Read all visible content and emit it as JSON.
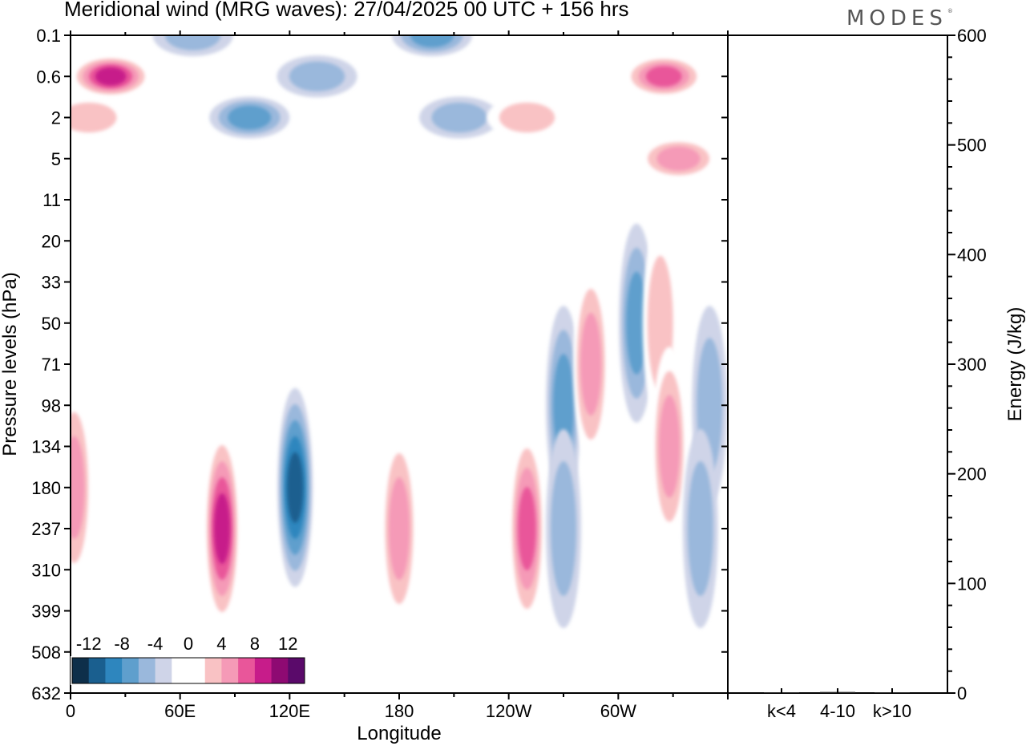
{
  "title": "Meridional wind (MRG waves):  27/04/2025  00 UTC  + 156 hrs",
  "logo": "MODES",
  "chart_data": [
    {
      "type": "heatmap",
      "title": "Meridional wind (MRG waves):  27/04/2025  00 UTC  + 156 hrs",
      "xlabel": "Longitude",
      "ylabel": "Pressure levels (hPa)",
      "x_tick_labels": [
        "0",
        "60E",
        "120E",
        "180",
        "120W",
        "60W"
      ],
      "x_tick_degrees": [
        0,
        60,
        120,
        180,
        240,
        300
      ],
      "xlim": [
        0,
        360
      ],
      "y_tick_labels": [
        "0.1",
        "0.6",
        "2",
        "5",
        "11",
        "20",
        "33",
        "50",
        "71",
        "98",
        "134",
        "180",
        "237",
        "310",
        "399",
        "508",
        "632"
      ],
      "colorbar": {
        "labels": [
          "-12",
          "-8",
          "-4",
          "0",
          "4",
          "8",
          "12"
        ],
        "levels": [
          -14,
          -12,
          -10,
          -8,
          -6,
          -4,
          -2,
          2,
          4,
          6,
          8,
          10,
          12,
          14
        ],
        "colors": [
          "#0e2f4a",
          "#1a5f8f",
          "#2e86be",
          "#5f9fcd",
          "#9ab8dc",
          "#cfd4e8",
          "#ffffff",
          "#ffffff",
          "#f9c2c4",
          "#f59ab7",
          "#e9569a",
          "#c71c8a",
          "#8e0a72",
          "#5a0a6a"
        ]
      },
      "cells": [
        {
          "lon": 22,
          "level": "0.6",
          "value": 11
        },
        {
          "lon": 10,
          "level": "2",
          "value": 5
        },
        {
          "lon": 67,
          "level": "0.1",
          "value": -5
        },
        {
          "lon": 98,
          "level": "2",
          "value": -6
        },
        {
          "lon": 135,
          "level": "0.6",
          "value": -4
        },
        {
          "lon": 198,
          "level": "0.1",
          "value": -6
        },
        {
          "lon": 213,
          "level": "2",
          "value": -4
        },
        {
          "lon": 250,
          "level": "2",
          "value": 4
        },
        {
          "lon": 325,
          "level": "0.6",
          "value": 9
        },
        {
          "lon": 333,
          "level": "5",
          "value": 6
        },
        {
          "lon": 2,
          "level": "180",
          "value": 6
        },
        {
          "lon": 83,
          "level": "237",
          "value": 11
        },
        {
          "lon": 123,
          "level": "180",
          "value": -11
        },
        {
          "lon": 180,
          "level": "237",
          "value": 6
        },
        {
          "lon": 250,
          "level": "237",
          "value": 9
        },
        {
          "lon": 270,
          "level": "98",
          "value": -6
        },
        {
          "lon": 285,
          "level": "71",
          "value": 6
        },
        {
          "lon": 310,
          "level": "50",
          "value": -6
        },
        {
          "lon": 323,
          "level": "50",
          "value": 5
        },
        {
          "lon": 328,
          "level": "134",
          "value": 6
        },
        {
          "lon": 350,
          "level": "98",
          "value": -5
        },
        {
          "lon": 345,
          "level": "237",
          "value": -5
        },
        {
          "lon": 270,
          "level": "237",
          "value": -5
        }
      ]
    },
    {
      "type": "bar",
      "ylabel": "Energy (J/kg)",
      "categories": [
        "k<4",
        "4-10",
        "k>10"
      ],
      "values": [
        0,
        1,
        0
      ],
      "ylim": [
        0,
        600
      ],
      "y_tick_labels": [
        "0",
        "100",
        "200",
        "300",
        "400",
        "500",
        "600"
      ]
    }
  ]
}
